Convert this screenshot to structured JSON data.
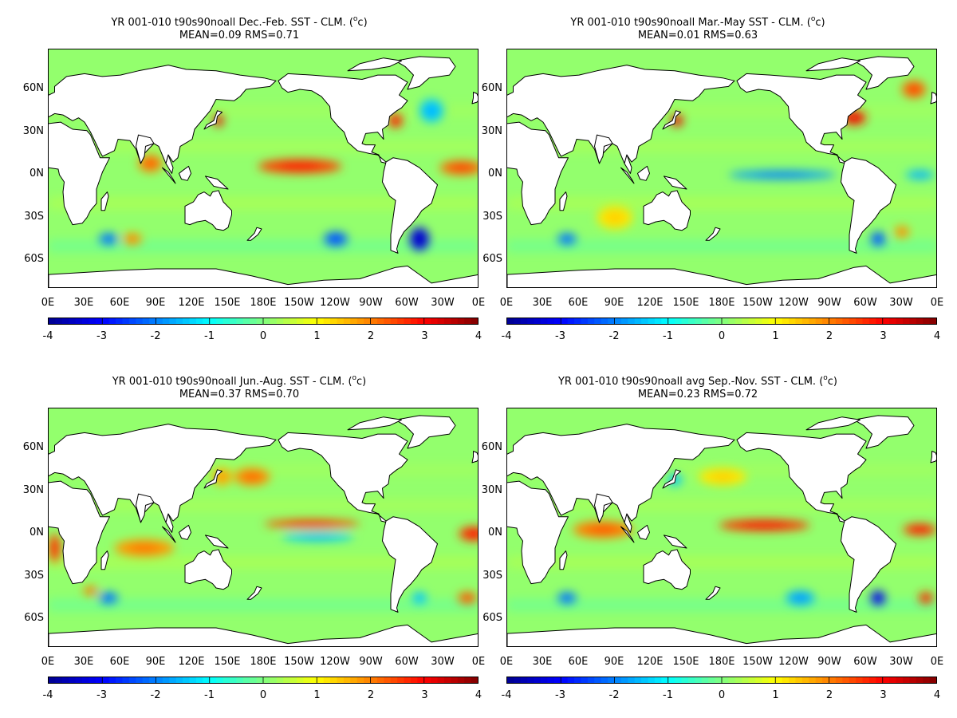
{
  "panels": [
    {
      "title_line1": "YR 001-010 t90s90noall  Dec.-Feb. SST - CLM. (",
      "title_unit_sup": "o",
      "title_unit": "c)",
      "title_line2": "MEAN=0.09   RMS=0.71",
      "anomalies": [
        {
          "lon": 210,
          "lat": 6,
          "value": 2.5,
          "spread_lon": 35,
          "spread_lat": 5
        },
        {
          "lon": 345,
          "lat": 5,
          "value": 2.2,
          "spread_lon": 18,
          "spread_lat": 5
        },
        {
          "lon": 310,
          "lat": -45,
          "value": -3.2,
          "spread_lon": 8,
          "spread_lat": 8
        },
        {
          "lon": 142,
          "lat": 38,
          "value": 3.0,
          "spread_lon": 4,
          "spread_lat": 4
        },
        {
          "lon": 290,
          "lat": 38,
          "value": 2.6,
          "spread_lon": 6,
          "spread_lat": 5
        },
        {
          "lon": 85,
          "lat": 8,
          "value": 2.0,
          "spread_lon": 10,
          "spread_lat": 6
        },
        {
          "lon": 240,
          "lat": -45,
          "value": -2.2,
          "spread_lon": 10,
          "spread_lat": 5
        },
        {
          "lon": 50,
          "lat": -45,
          "value": -2.0,
          "spread_lon": 8,
          "spread_lat": 4
        },
        {
          "lon": 70,
          "lat": -45,
          "value": 1.8,
          "spread_lon": 8,
          "spread_lat": 4
        },
        {
          "lon": 320,
          "lat": 45,
          "value": -1.4,
          "spread_lon": 10,
          "spread_lat": 8
        }
      ]
    },
    {
      "title_line1": "YR 001-010 t90s90noall Mar.-May SST - CLM. (",
      "title_unit_sup": "o",
      "title_unit": "c)",
      "title_line2": "MEAN=0.01   RMS=0.63",
      "anomalies": [
        {
          "lon": 230,
          "lat": 0,
          "value": -1.8,
          "spread_lon": 45,
          "spread_lat": 3
        },
        {
          "lon": 142,
          "lat": 38,
          "value": 3.0,
          "spread_lon": 5,
          "spread_lat": 4
        },
        {
          "lon": 290,
          "lat": 40,
          "value": 2.8,
          "spread_lon": 10,
          "spread_lat": 5
        },
        {
          "lon": 340,
          "lat": 60,
          "value": 2.2,
          "spread_lon": 10,
          "spread_lat": 6
        },
        {
          "lon": 345,
          "lat": 0,
          "value": -1.5,
          "spread_lon": 12,
          "spread_lat": 3
        },
        {
          "lon": 310,
          "lat": -45,
          "value": -2.2,
          "spread_lon": 6,
          "spread_lat": 5
        },
        {
          "lon": 50,
          "lat": -45,
          "value": -2.0,
          "spread_lon": 8,
          "spread_lat": 4
        },
        {
          "lon": 90,
          "lat": -30,
          "value": 1.2,
          "spread_lon": 15,
          "spread_lat": 8
        },
        {
          "lon": 330,
          "lat": -40,
          "value": 1.8,
          "spread_lon": 6,
          "spread_lat": 4
        }
      ]
    },
    {
      "title_line1": "YR 001-010 t90s90noall Jun.-Aug. SST - CLM. (",
      "title_unit_sup": "o",
      "title_unit": "c)",
      "title_line2": "MEAN=0.37   RMS=0.70",
      "anomalies": [
        {
          "lon": 220,
          "lat": 7,
          "value": 2.4,
          "spread_lon": 40,
          "spread_lat": 3
        },
        {
          "lon": 225,
          "lat": -2,
          "value": -1.4,
          "spread_lon": 30,
          "spread_lat": 3
        },
        {
          "lon": 355,
          "lat": 0,
          "value": 2.6,
          "spread_lon": 12,
          "spread_lat": 5
        },
        {
          "lon": 5,
          "lat": -10,
          "value": 2.4,
          "spread_lon": 5,
          "spread_lat": 10
        },
        {
          "lon": 80,
          "lat": -10,
          "value": 1.8,
          "spread_lon": 25,
          "spread_lat": 6
        },
        {
          "lon": 170,
          "lat": 40,
          "value": 1.9,
          "spread_lon": 15,
          "spread_lat": 6
        },
        {
          "lon": 145,
          "lat": 40,
          "value": 1.6,
          "spread_lon": 8,
          "spread_lat": 6
        },
        {
          "lon": 50,
          "lat": -45,
          "value": -2.0,
          "spread_lon": 8,
          "spread_lat": 4
        },
        {
          "lon": 35,
          "lat": -40,
          "value": 2.0,
          "spread_lon": 6,
          "spread_lat": 3
        },
        {
          "lon": 350,
          "lat": -45,
          "value": 2.2,
          "spread_lon": 8,
          "spread_lat": 4
        },
        {
          "lon": 310,
          "lat": -45,
          "value": -1.4,
          "spread_lon": 6,
          "spread_lat": 4
        }
      ]
    },
    {
      "title_line1": "YR 001-010 t90s90noall avg Sep.-Nov. SST - CLM. (",
      "title_unit_sup": "o",
      "title_unit": "c)",
      "title_line2": "MEAN=0.23   RMS=0.72",
      "anomalies": [
        {
          "lon": 215,
          "lat": 6,
          "value": 2.6,
          "spread_lon": 38,
          "spread_lat": 4
        },
        {
          "lon": 345,
          "lat": 3,
          "value": 2.6,
          "spread_lon": 14,
          "spread_lat": 4
        },
        {
          "lon": 80,
          "lat": 3,
          "value": 2.0,
          "spread_lon": 25,
          "spread_lat": 6
        },
        {
          "lon": 310,
          "lat": -45,
          "value": -3.0,
          "spread_lon": 6,
          "spread_lat": 5
        },
        {
          "lon": 140,
          "lat": 38,
          "value": -1.4,
          "spread_lon": 6,
          "spread_lat": 4
        },
        {
          "lon": 50,
          "lat": -45,
          "value": -2.0,
          "spread_lon": 8,
          "spread_lat": 4
        },
        {
          "lon": 245,
          "lat": -45,
          "value": -1.6,
          "spread_lon": 12,
          "spread_lat": 5
        },
        {
          "lon": 350,
          "lat": -45,
          "value": 2.6,
          "spread_lon": 6,
          "spread_lat": 4
        },
        {
          "lon": 180,
          "lat": 40,
          "value": 1.2,
          "spread_lon": 20,
          "spread_lat": 6
        }
      ]
    }
  ],
  "lat_labels": [
    "60N",
    "30N",
    "0N",
    "30S",
    "60S"
  ],
  "lat_values": [
    60,
    30,
    0,
    -30,
    -60
  ],
  "lon_labels": [
    "0E",
    "30E",
    "60E",
    "90E",
    "120E",
    "150E",
    "180E",
    "150W",
    "120W",
    "90W",
    "60W",
    "30W",
    "0E"
  ],
  "colorbar_ticks": [
    "-4",
    "-3",
    "-2",
    "-1",
    "0",
    "1",
    "2",
    "3",
    "4"
  ],
  "colorbar_range": [
    -4,
    4
  ],
  "map_extent": {
    "lon": [
      0,
      360
    ],
    "lat": [
      -80,
      88
    ]
  },
  "colormap": [
    "#00008f",
    "#0000ff",
    "#0080ff",
    "#00ffff",
    "#80ff80",
    "#ffff00",
    "#ff8000",
    "#ff0000",
    "#800000"
  ]
}
